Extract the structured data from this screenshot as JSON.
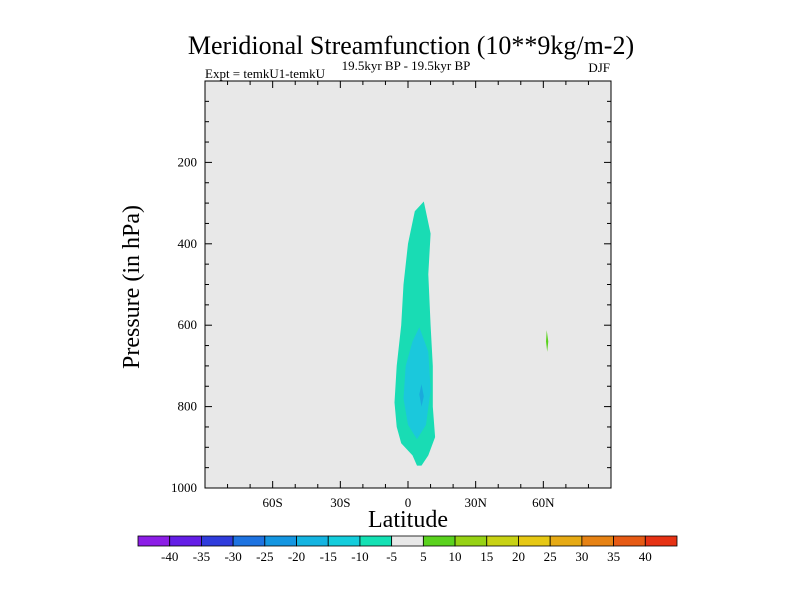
{
  "chart_data": {
    "type": "contour",
    "title": "Meridional Streamfunction (10**9kg/m-2)",
    "subtitle_left": "Expt = temkU1-temkU",
    "subtitle_center": "19.5kyr BP - 19.5kyr BP",
    "subtitle_right": "DJF",
    "xlabel": "Latitude",
    "ylabel": "Pressure (in hPa)",
    "xlim": [
      -90,
      90
    ],
    "ylim": [
      0,
      1000
    ],
    "y_inverted": true,
    "x_ticks": [
      {
        "value": -60,
        "label": "60S"
      },
      {
        "value": -30,
        "label": "30S"
      },
      {
        "value": 0,
        "label": "0"
      },
      {
        "value": 30,
        "label": "30N"
      },
      {
        "value": 60,
        "label": "60N"
      }
    ],
    "y_ticks": [
      {
        "value": 200,
        "label": "200"
      },
      {
        "value": 400,
        "label": "400"
      },
      {
        "value": 600,
        "label": "600"
      },
      {
        "value": 800,
        "label": "800"
      },
      {
        "value": 1000,
        "label": "1000"
      }
    ],
    "background_level_color": "#e8e8e8",
    "regions": [
      {
        "name": "outer-negative-region",
        "level": "-10 to -5",
        "color": "#19dcb4",
        "points": [
          [
            7,
            296
          ],
          [
            10,
            375
          ],
          [
            9,
            475
          ],
          [
            10,
            600
          ],
          [
            11,
            700
          ],
          [
            11,
            800
          ],
          [
            12,
            875
          ],
          [
            9,
            920
          ],
          [
            6,
            945
          ],
          [
            4,
            945
          ],
          [
            2,
            920
          ],
          [
            -3,
            890
          ],
          [
            -5,
            850
          ],
          [
            -6,
            790
          ],
          [
            -5,
            700
          ],
          [
            -3,
            600
          ],
          [
            -2,
            500
          ],
          [
            0,
            400
          ],
          [
            3,
            320
          ]
        ]
      },
      {
        "name": "inner-negative-region",
        "level": "-15 to -10",
        "color": "#1bc8dc",
        "points": [
          [
            5,
            605
          ],
          [
            9,
            665
          ],
          [
            10,
            760
          ],
          [
            8,
            845
          ],
          [
            4,
            880
          ],
          [
            0,
            845
          ],
          [
            -2,
            780
          ],
          [
            -1,
            700
          ],
          [
            2,
            640
          ]
        ]
      },
      {
        "name": "inner-core-region",
        "level": "-20 to -15",
        "color": "#1aaadc",
        "points": [
          [
            6,
            745
          ],
          [
            7,
            775
          ],
          [
            6,
            800
          ],
          [
            5,
            770
          ]
        ]
      },
      {
        "name": "positive-sliver-region",
        "level": "5 to 10",
        "color": "#5ad21e",
        "points": [
          [
            61.5,
            612
          ],
          [
            62.2,
            640
          ],
          [
            61.7,
            665
          ],
          [
            61.2,
            640
          ]
        ]
      }
    ],
    "colorbar": {
      "labels": [
        "-40",
        "-35",
        "-30",
        "-25",
        "-20",
        "-15",
        "-10",
        "-5",
        "5",
        "10",
        "15",
        "20",
        "25",
        "30",
        "35",
        "40"
      ],
      "colors": [
        "#8c1ee6",
        "#641ee6",
        "#2f3cdc",
        "#1e73e1",
        "#1496e1",
        "#14b4e1",
        "#14cddc",
        "#14e1b4",
        "#e8e8e8",
        "#5ad21e",
        "#96d214",
        "#c8d214",
        "#e6c814",
        "#e6aa14",
        "#e68214",
        "#e65a14",
        "#e63214"
      ]
    }
  }
}
